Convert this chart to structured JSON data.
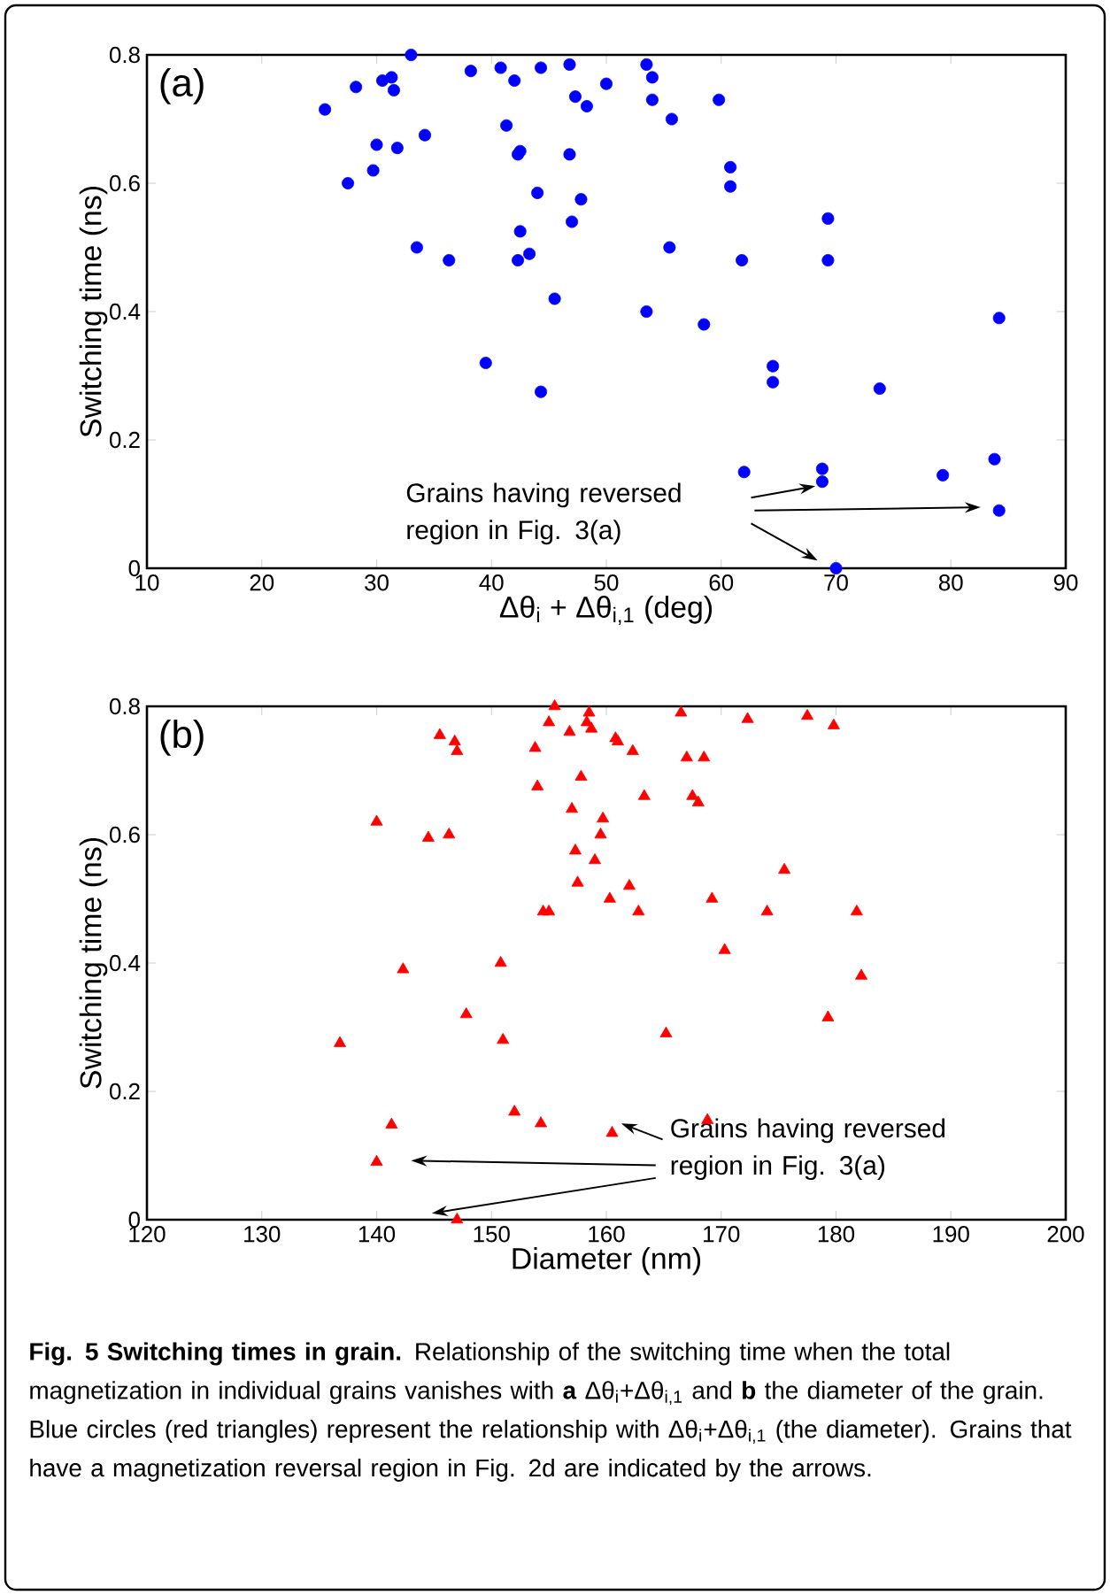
{
  "chart_data": [
    {
      "type": "scatter",
      "xlabel": "Δθ$_{i}$ + Δθ$_{i,1}$ (deg)",
      "ylabel": "Switching time (ns)",
      "marker": "circle",
      "xlim": [
        10,
        90
      ],
      "ylim": [
        0,
        0.8
      ],
      "xticks": [
        10,
        20,
        30,
        40,
        50,
        60,
        70,
        80,
        90
      ],
      "yticks": [
        0,
        0.2,
        0.4,
        0.6,
        0.8
      ],
      "annotations": [
        "(a)",
        "Grains having reversed region in Fig. 3(a)"
      ],
      "series": [
        {
          "color": "#0000ff",
          "x": [
            25.5,
            27.5,
            28.2,
            29.7,
            30,
            30.5,
            31.3,
            31.5,
            31.8,
            33,
            33.5,
            34.2,
            36.3,
            38.2,
            39.5,
            40.8,
            41.3,
            42,
            42.3,
            42.5,
            42.5,
            42.3,
            43.3,
            44,
            44.3,
            44.3,
            45.5,
            46.8,
            46.8,
            47,
            47.3,
            47.8,
            48.3,
            50,
            53.5,
            53.5,
            54,
            54,
            55.5,
            55.7,
            58.5,
            59.8,
            60.8,
            60.8,
            61.8,
            62,
            64.5,
            64.5,
            68.8,
            68.8,
            69.3,
            69.3,
            70,
            73.8,
            79.3,
            83.8,
            84.2,
            84.2
          ],
          "values": [
            0.715,
            0.6,
            0.75,
            0.62,
            0.66,
            0.76,
            0.765,
            0.745,
            0.655,
            0.8,
            0.5,
            0.675,
            0.48,
            0.775,
            0.32,
            0.78,
            0.69,
            0.76,
            0.645,
            0.65,
            0.525,
            0.48,
            0.49,
            0.585,
            0.78,
            0.275,
            0.42,
            0.785,
            0.645,
            0.54,
            0.735,
            0.575,
            0.72,
            0.755,
            0.785,
            0.4,
            0.73,
            0.765,
            0.5,
            0.7,
            0.38,
            0.73,
            0.625,
            0.595,
            0.48,
            0.15,
            0.315,
            0.29,
            0.155,
            0.135,
            0.545,
            0.48,
            0,
            0.28,
            0.145,
            0.17,
            0.39,
            0.09
          ]
        }
      ]
    },
    {
      "type": "scatter",
      "xlabel": "Diameter (nm)",
      "ylabel": "Switching time (ns)",
      "marker": "triangle",
      "xlim": [
        120,
        200
      ],
      "ylim": [
        0,
        0.8
      ],
      "xticks": [
        120,
        130,
        140,
        150,
        160,
        170,
        180,
        190,
        200
      ],
      "yticks": [
        0,
        0.2,
        0.4,
        0.6,
        0.8
      ],
      "annotations": [
        "(b)",
        "Grains having reversed region in Fig. 3(a)",
        "**Fig. 5 Switching times in grain.** Relationship of the switching time when the total magnetization in individual grains vanishes with **a** Δθ$_{i}$+Δθ$_{i,1}$ and **b** the diameter of the grain. Blue circles (red triangles) represent the relationship with Δθ$_{i}$+Δθ$_{i,1}$ (the diameter). Grains that have a magnetization reversal region in Fig. 2d are indicated by the arrows."
      ],
      "series": [
        {
          "color": "#ff0000",
          "x": [
            136.8,
            140,
            140,
            141.3,
            142.3,
            144.5,
            145.5,
            146.3,
            146.8,
            147,
            147,
            147.8,
            150.8,
            151,
            152,
            153.8,
            154,
            154.3,
            154.5,
            155,
            155,
            155.5,
            156.8,
            157,
            157.5,
            157.3,
            157.8,
            158.3,
            158.5,
            158.7,
            159,
            159.5,
            159.7,
            160.3,
            160.5,
            160.8,
            161,
            162.3,
            162,
            162.8,
            163.3,
            165.2,
            166.5,
            167,
            167.5,
            168,
            168.5,
            168.8,
            169.2,
            170.3,
            172.3,
            174,
            175.5,
            177.5,
            179.3,
            179.8,
            181.8,
            182.2
          ],
          "values": [
            0.275,
            0.62,
            0.09,
            0.148,
            0.39,
            0.595,
            0.755,
            0.6,
            0.745,
            0.73,
            0,
            0.32,
            0.4,
            0.28,
            0.168,
            0.735,
            0.675,
            0.15,
            0.48,
            0.48,
            0.775,
            0.8,
            0.76,
            0.64,
            0.525,
            0.575,
            0.69,
            0.775,
            0.79,
            0.765,
            0.56,
            0.6,
            0.625,
            0.5,
            0.135,
            0.75,
            0.745,
            0.73,
            0.52,
            0.48,
            0.66,
            0.29,
            0.79,
            0.72,
            0.66,
            0.65,
            0.72,
            0.155,
            0.5,
            0.42,
            0.78,
            0.48,
            0.545,
            0.785,
            0.315,
            0.77,
            0.48,
            0.38
          ]
        }
      ]
    }
  ]
}
